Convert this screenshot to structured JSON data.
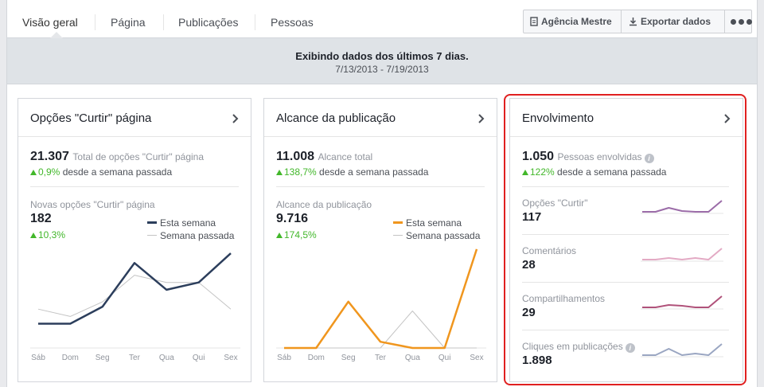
{
  "nav": {
    "tabs": [
      "Visão geral",
      "Página",
      "Publicações",
      "Pessoas"
    ],
    "agency_button": "Agência Mestre",
    "export_button": "Exportar dados"
  },
  "banner": {
    "title": "Exibindo dados dos últimos 7 dias.",
    "date_range": "7/13/2013 - 7/19/2013"
  },
  "days": [
    "Sáb",
    "Dom",
    "Seg",
    "Ter",
    "Qua",
    "Qui",
    "Sex"
  ],
  "colors": {
    "likes_series": "#2c3e5c",
    "reach_series": "#f0961e",
    "previous_week": "#c4c4c4",
    "positive": "#42b72a",
    "highlight_border": "#e02020"
  },
  "likes_card": {
    "title": "Opções \"Curtir\" página",
    "total_value": "21.307",
    "total_label": "Total de opções \"Curtir\" página",
    "delta": "0,9%",
    "delta_text": "desde a semana passada",
    "sub_label": "Novas opções \"Curtir\" página",
    "sub_value": "182",
    "sub_delta": "10,3%",
    "legend_this": "Esta semana",
    "legend_last": "Semana passada"
  },
  "reach_card": {
    "title": "Alcance da publicação",
    "total_value": "11.008",
    "total_label": "Alcance total",
    "delta": "138,7%",
    "delta_text": "desde a semana passada",
    "sub_label": "Alcance da publicação",
    "sub_value": "9.716",
    "sub_delta": "174,5%",
    "legend_this": "Esta semana",
    "legend_last": "Semana passada"
  },
  "engagement_card": {
    "title": "Envolvimento",
    "total_value": "1.050",
    "total_label": "Pessoas envolvidas",
    "delta": "122%",
    "delta_text": "desde a semana passada",
    "metrics": [
      {
        "label": "Opções \"Curtir\"",
        "value": "117",
        "color": "#9b6ca8",
        "spark": [
          0.3,
          0.3,
          0.55,
          0.35,
          0.3,
          0.3,
          1.0
        ]
      },
      {
        "label": "Comentários",
        "value": "28",
        "color": "#e3aac4",
        "spark": [
          0.3,
          0.3,
          0.4,
          0.3,
          0.4,
          0.3,
          1.0
        ]
      },
      {
        "label": "Compartilhamentos",
        "value": "29",
        "color": "#b0527a",
        "spark": [
          0.3,
          0.3,
          0.45,
          0.4,
          0.3,
          0.3,
          1.0
        ]
      },
      {
        "label": "Cliques em publicações",
        "value": "1.898",
        "color": "#9aa6c2",
        "spark": [
          0.3,
          0.3,
          0.7,
          0.3,
          0.4,
          0.3,
          1.0
        ]
      }
    ]
  },
  "chart_data": [
    {
      "type": "line",
      "categories": [
        "Sáb",
        "Dom",
        "Seg",
        "Ter",
        "Qua",
        "Qui",
        "Sex"
      ],
      "series": [
        {
          "name": "Esta semana",
          "values": [
            10,
            10,
            17,
            35,
            24,
            27,
            39
          ]
        },
        {
          "name": "Semana passada",
          "values": [
            16,
            13,
            19,
            30,
            27,
            27,
            16
          ]
        }
      ]
    },
    {
      "type": "line",
      "categories": [
        "Sáb",
        "Dom",
        "Seg",
        "Ter",
        "Qua",
        "Qui",
        "Sex"
      ],
      "series": [
        {
          "name": "Esta semana",
          "values": [
            0,
            0,
            1500,
            200,
            0,
            0,
            3200
          ]
        },
        {
          "name": "Semana passada",
          "values": [
            0,
            0,
            0,
            0,
            1200,
            0,
            0
          ]
        }
      ]
    }
  ]
}
